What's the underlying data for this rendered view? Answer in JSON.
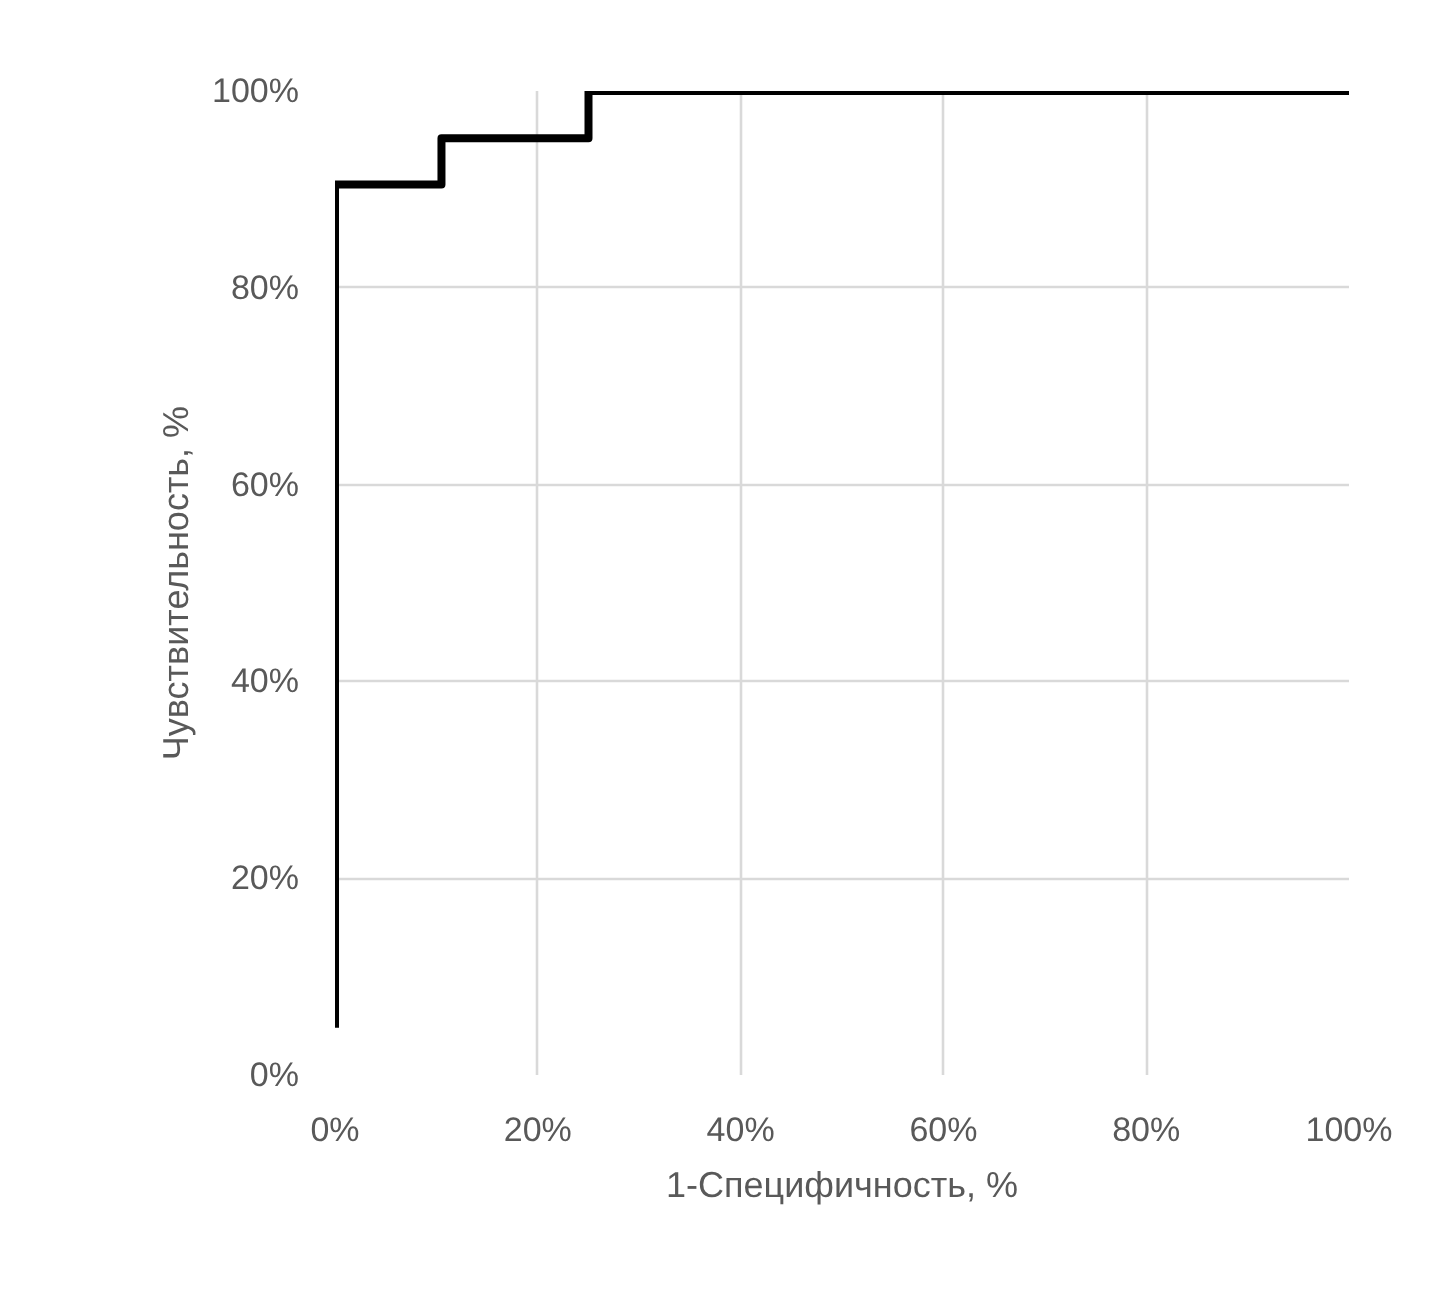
{
  "chart_data": {
    "type": "line",
    "xlabel": "1-Специфичность, %",
    "ylabel": "Чувствительность, %",
    "x": [
      0,
      0,
      10.5,
      10.5,
      25,
      25,
      100
    ],
    "series": [
      {
        "color": "#000000",
        "values": [
          4.8,
          90.5,
          90.5,
          95.2,
          95.2,
          100,
          100
        ]
      }
    ],
    "xlim": [
      0,
      100
    ],
    "ylim": [
      0,
      100
    ],
    "xticks": [
      {
        "value": 0,
        "label": "0%"
      },
      {
        "value": 20,
        "label": "20%"
      },
      {
        "value": 40,
        "label": "40%"
      },
      {
        "value": 60,
        "label": "60%"
      },
      {
        "value": 80,
        "label": "80%"
      },
      {
        "value": 100,
        "label": "100%"
      }
    ],
    "yticks": [
      {
        "value": 0,
        "label": "0%"
      },
      {
        "value": 20,
        "label": "20%"
      },
      {
        "value": 40,
        "label": "40%"
      },
      {
        "value": 60,
        "label": "60%"
      },
      {
        "value": 80,
        "label": "80%"
      },
      {
        "value": 100,
        "label": "100%"
      }
    ],
    "grid": true,
    "marker": "none",
    "line_style": "solid"
  }
}
